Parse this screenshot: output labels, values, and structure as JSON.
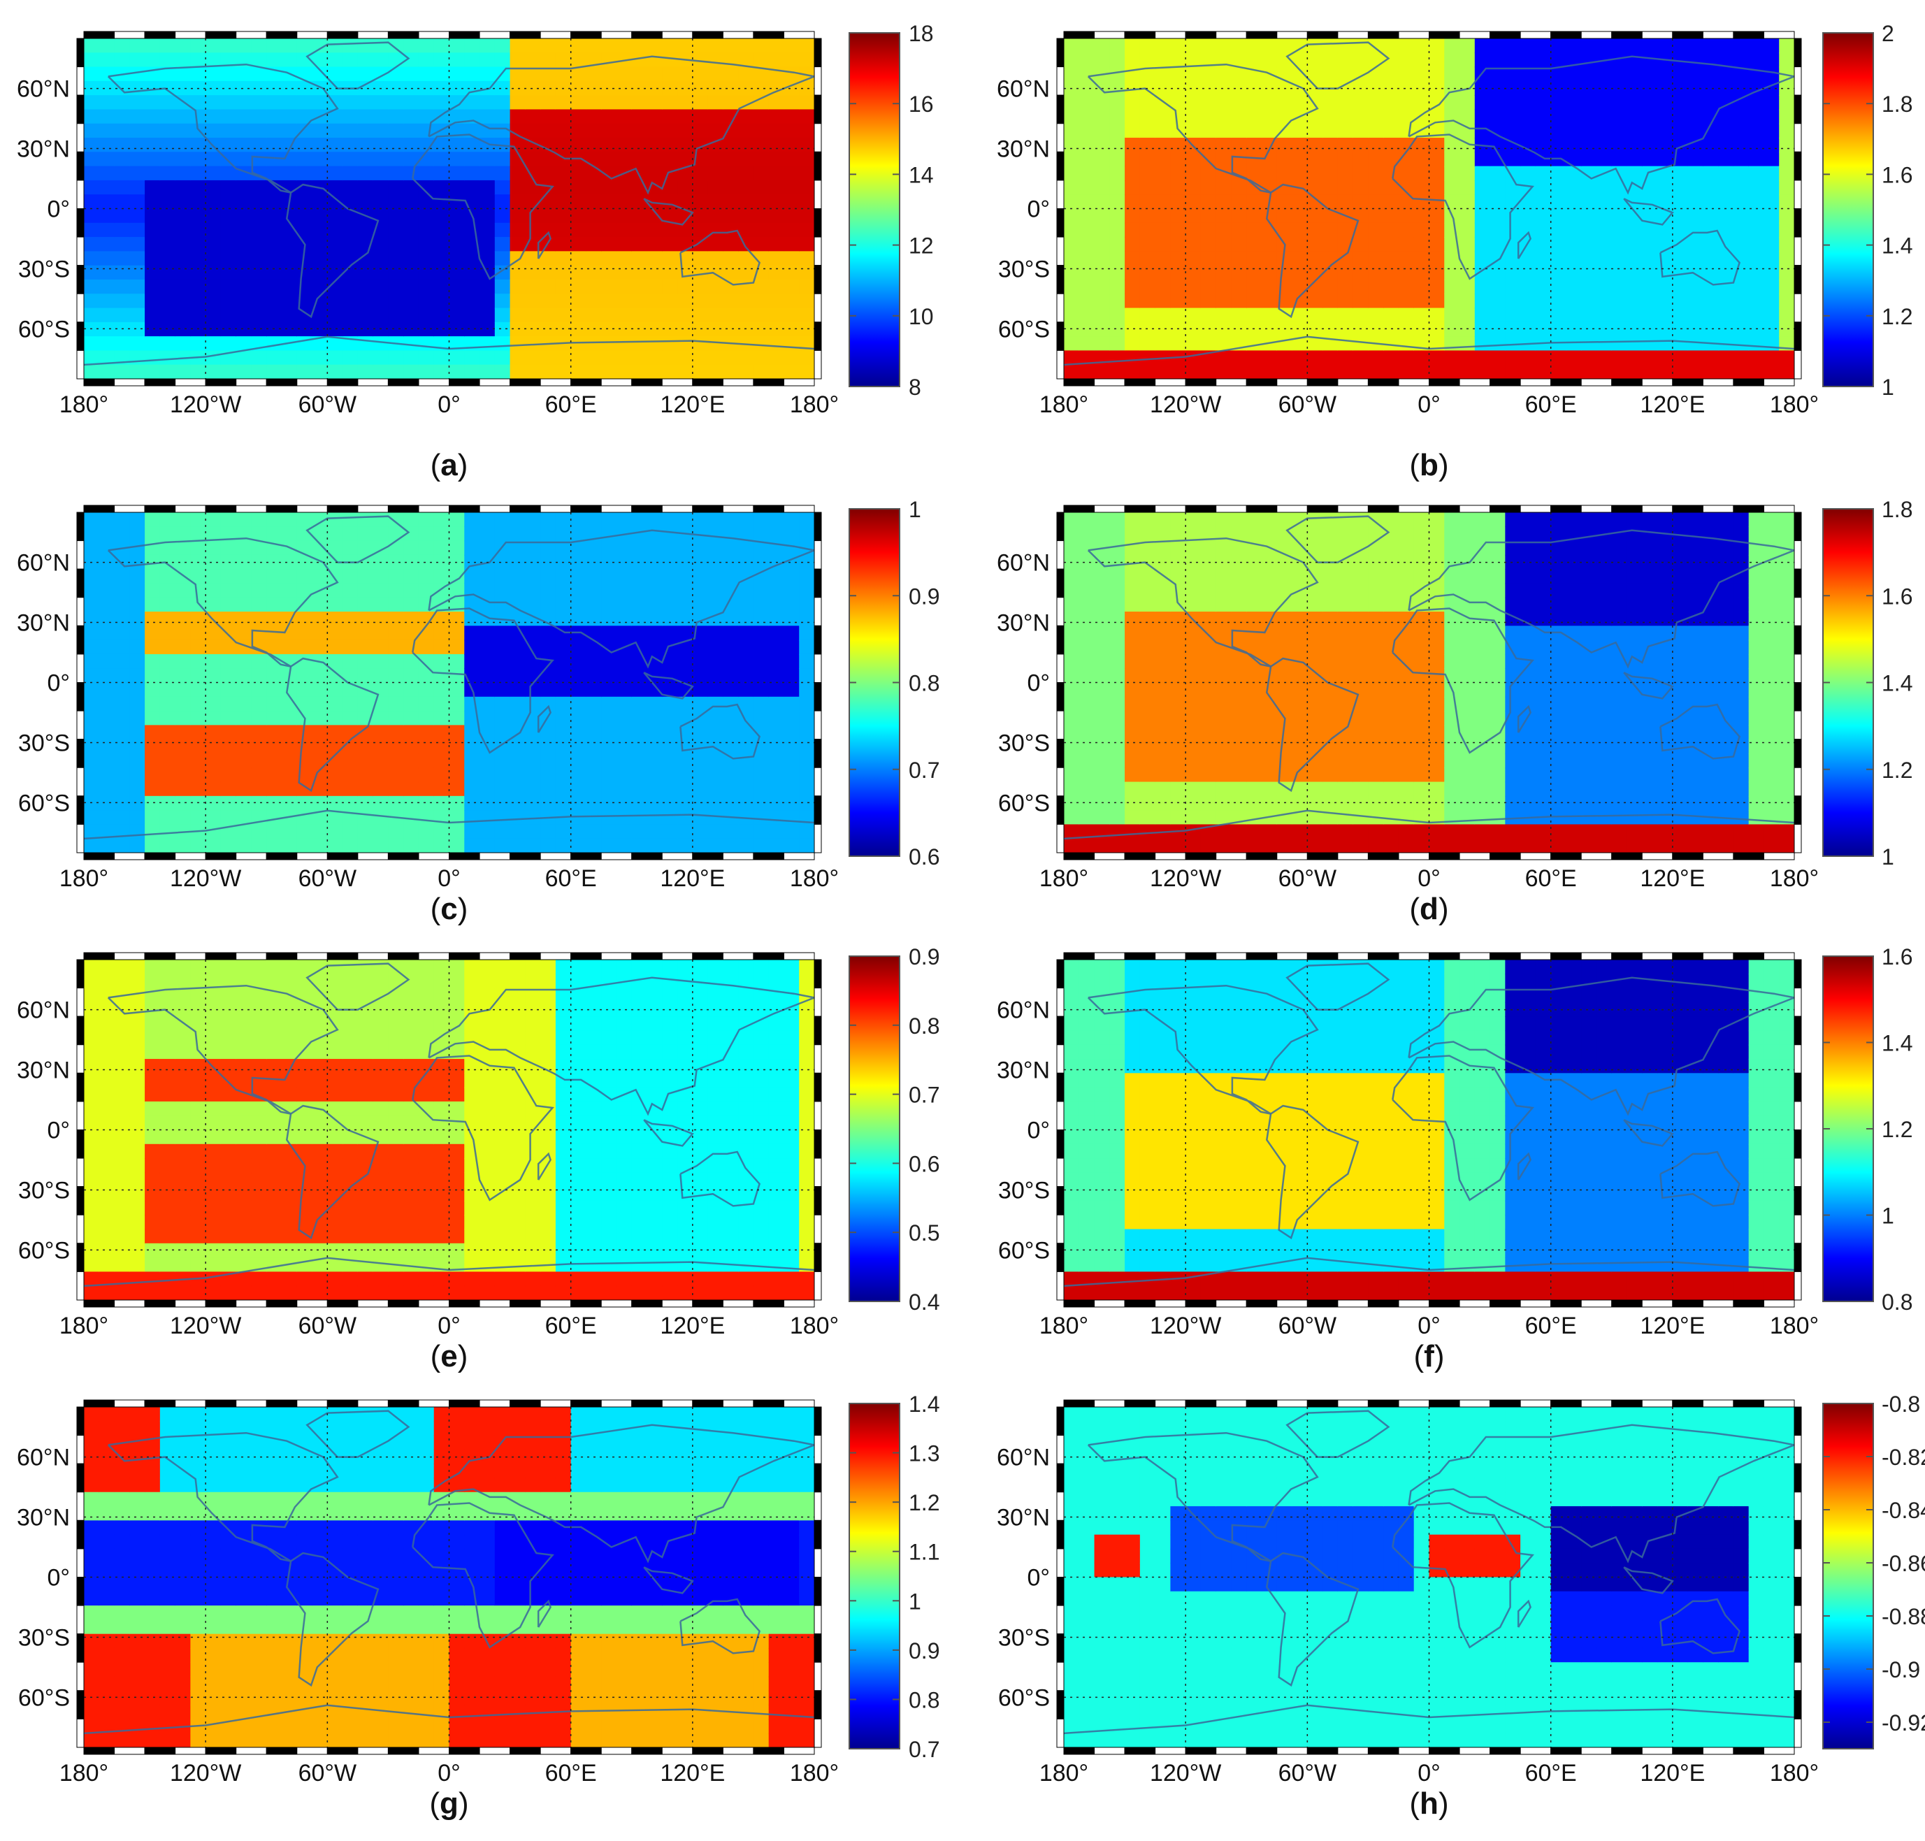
{
  "figure": {
    "panels": [
      {
        "label": "(a)",
        "letter": "a",
        "colorbar": {
          "ticks": [
            "18",
            "16",
            "14",
            "12",
            "10",
            "8"
          ],
          "range": [
            8,
            18
          ]
        }
      },
      {
        "label": "(b)",
        "letter": "b",
        "colorbar": {
          "ticks": [
            "2",
            "1.8",
            "1.6",
            "1.4",
            "1.2",
            "1"
          ],
          "range": [
            1,
            2
          ]
        }
      },
      {
        "label": "(c)",
        "letter": "c",
        "colorbar": {
          "ticks": [
            "1",
            "0.9",
            "0.8",
            "0.7",
            "0.6"
          ],
          "range": [
            0.6,
            1
          ]
        }
      },
      {
        "label": "(d)",
        "letter": "d",
        "colorbar": {
          "ticks": [
            "1.8",
            "1.6",
            "1.4",
            "1.2",
            "1"
          ],
          "range": [
            1,
            1.8
          ]
        }
      },
      {
        "label": "(e)",
        "letter": "e",
        "colorbar": {
          "ticks": [
            "0.9",
            "0.8",
            "0.7",
            "0.6",
            "0.5",
            "0.4"
          ],
          "range": [
            0.4,
            0.9
          ]
        }
      },
      {
        "label": "(f)",
        "letter": "f",
        "colorbar": {
          "ticks": [
            "1.6",
            "1.4",
            "1.2",
            "1",
            "0.8"
          ],
          "range": [
            0.8,
            1.6
          ]
        }
      },
      {
        "label": "(g)",
        "letter": "g",
        "colorbar": {
          "ticks": [
            "1.4",
            "1.3",
            "1.2",
            "1.1",
            "1",
            "0.9",
            "0.8",
            "0.7"
          ],
          "range": [
            0.7,
            1.4
          ]
        }
      },
      {
        "label": "(h)",
        "letter": "h",
        "colorbar": {
          "ticks": [
            "-0.8",
            "-0.82",
            "-0.84",
            "-0.86",
            "-0.88",
            "-0.9",
            "-0.92"
          ],
          "range": [
            -0.93,
            -0.8
          ]
        }
      }
    ],
    "lat_ticks": [
      "60°N",
      "30°N",
      "0°",
      "30°S",
      "60°S"
    ],
    "lon_ticks": [
      "180°",
      "120°W",
      "60°W",
      "0°",
      "60°E",
      "120°E",
      "180°"
    ],
    "colormap": "jet",
    "colormap_stops": [
      "#00008f",
      "#0000ff",
      "#00ffff",
      "#ffff00",
      "#ff0000",
      "#800000"
    ],
    "map_grid": "dotted"
  }
}
